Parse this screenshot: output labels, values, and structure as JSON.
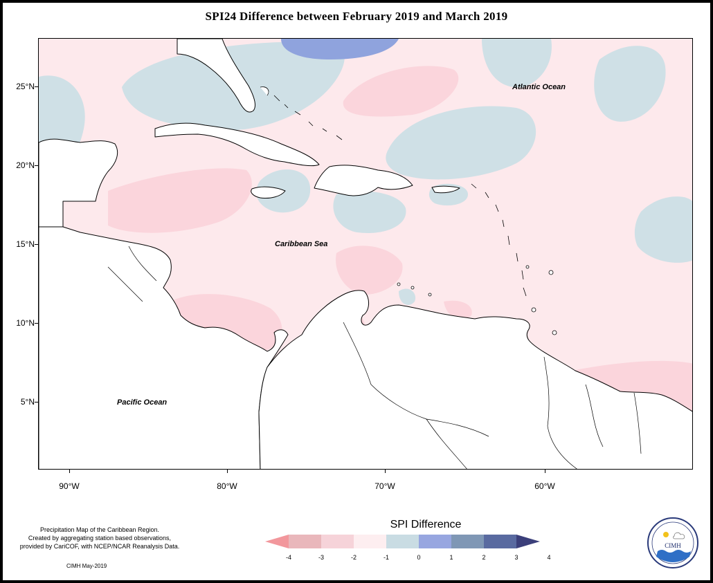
{
  "title": "SPI24 Difference between February 2019 and March 2019",
  "map": {
    "labels": {
      "atlantic": "Atlantic Ocean",
      "caribbean": "Caribbean Sea",
      "pacific": "Pacific Ocean"
    },
    "latitude_ticks": [
      "25°N",
      "20°N",
      "15°N",
      "10°N",
      "5°N"
    ],
    "longitude_ticks": [
      "90°W",
      "80°W",
      "70°W",
      "60°W"
    ],
    "colors": {
      "land": "#ffffff",
      "neutral": "#fde9ec",
      "neg_1": "#fbd5dc",
      "neg_2": "#f5b9c2",
      "pos_1": "#cfe0e6",
      "pos_2": "#8fa3dd"
    }
  },
  "legend": {
    "title": "SPI Difference",
    "ticks": [
      "-4",
      "-3",
      "-2",
      "-1",
      "0",
      "1",
      "2",
      "3",
      "4"
    ],
    "colors": [
      "#f2979c",
      "#e9b7bb",
      "#f6d3d9",
      "#fdeef0",
      "#c9dce3",
      "#97a6e0",
      "#7f97b5",
      "#596aa0",
      "#3b3f7a"
    ]
  },
  "note": {
    "lines": [
      "Precipitation Map of the Caribbean Region.",
      "Created by aggregating station based observations,",
      "provided by CariCOF, with NCEP/NCAR Reanalysis Data."
    ],
    "credit": "CIMH May-2019"
  },
  "logo": {
    "text": "CIMH"
  }
}
